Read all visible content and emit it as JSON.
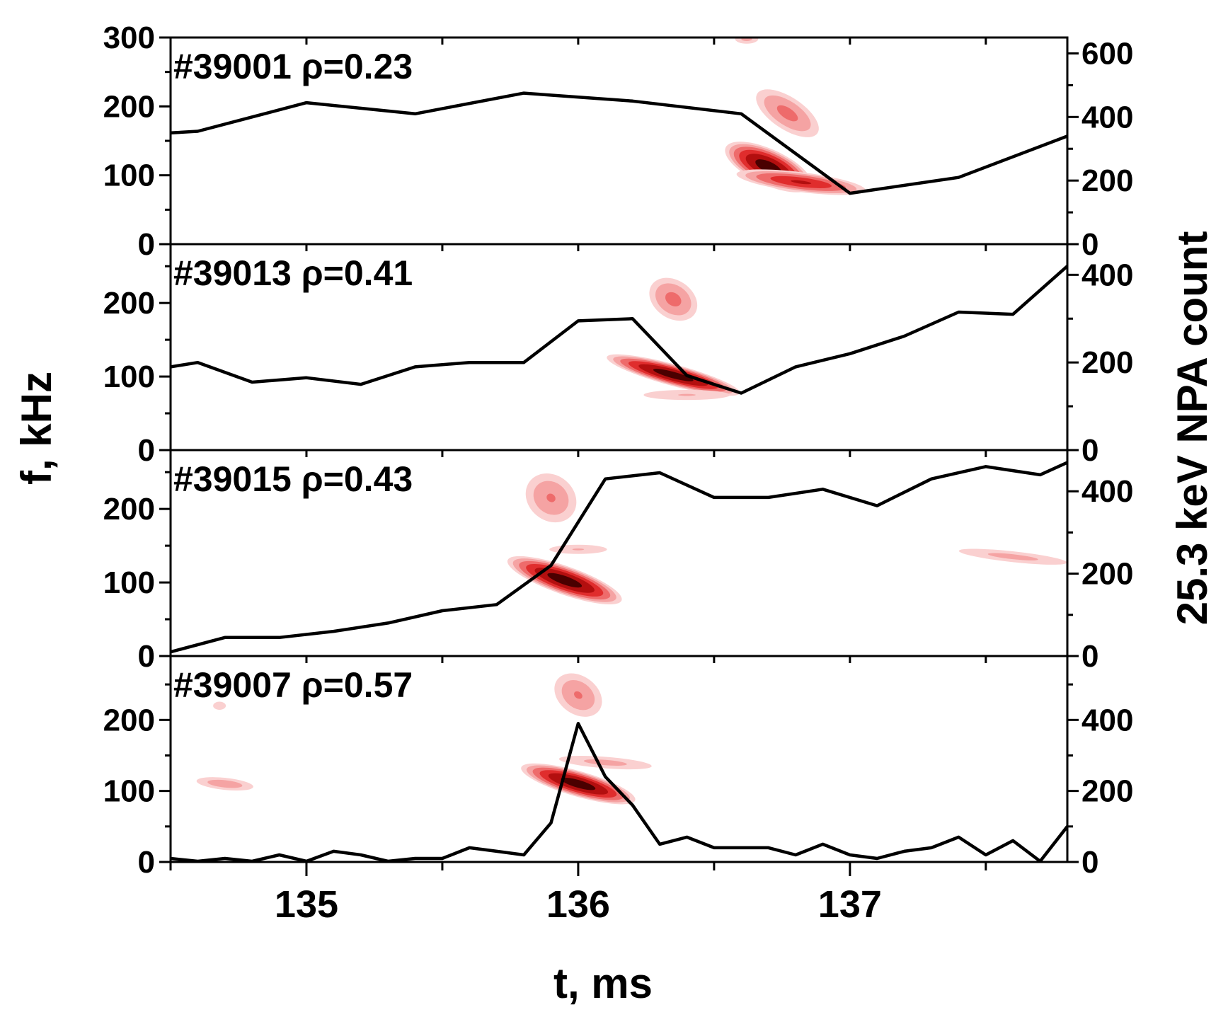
{
  "chart_data": {
    "type": "line",
    "xlabel": "t, ms",
    "ylabel": "f, kHz",
    "y2label": "25.3 keV NPA count",
    "xlim": [
      134.5,
      137.8
    ],
    "xticks": [
      135,
      136,
      137
    ],
    "xtick_labels": [
      "135",
      "136",
      "137"
    ],
    "grid": false,
    "panels": [
      {
        "label": "#39001 ρ=0.23",
        "ylim": [
          0,
          300
        ],
        "y2lim": [
          0,
          650
        ],
        "yticks": [
          0,
          100,
          200,
          300
        ],
        "ytick_labels": [
          "0",
          "100",
          "200",
          "300"
        ],
        "y2ticks": [
          0,
          200,
          400,
          600
        ],
        "y2tick_labels": [
          "0",
          "200",
          "400",
          "600"
        ],
        "series": [
          {
            "axis": "right",
            "x": [
              134.5,
              134.6,
              134.8,
              135.0,
              135.4,
              135.8,
              136.2,
              136.6,
              137.0,
              137.4,
              137.8
            ],
            "y": [
              350,
              355,
              400,
              445,
              410,
              475,
              450,
              410,
              160,
              210,
              340
            ]
          }
        ],
        "blobs": [
          {
            "t": 136.7,
            "f": 112,
            "sigma_t": 0.09,
            "sigma_f": 26,
            "slope": -180,
            "strength": 1.0
          },
          {
            "t": 136.82,
            "f": 90,
            "sigma_t": 0.14,
            "sigma_f": 12,
            "slope": -50,
            "strength": 0.75
          },
          {
            "t": 136.77,
            "f": 190,
            "sigma_t": 0.07,
            "sigma_f": 26,
            "slope": -260,
            "strength": 0.5
          },
          {
            "t": 136.62,
            "f": 298,
            "sigma_t": 0.03,
            "sigma_f": 4,
            "slope": 0,
            "strength": 0.35
          }
        ]
      },
      {
        "label": "#39013 ρ=0.41",
        "ylim": [
          0,
          280
        ],
        "y2lim": [
          0,
          470
        ],
        "yticks": [
          0,
          100,
          200
        ],
        "ytick_labels": [
          "0",
          "100",
          "200"
        ],
        "y2ticks": [
          0,
          200,
          400
        ],
        "y2tick_labels": [
          "0",
          "200",
          "400"
        ],
        "series": [
          {
            "axis": "right",
            "x": [
              134.5,
              134.6,
              134.8,
              135.0,
              135.2,
              135.4,
              135.6,
              135.8,
              136.0,
              136.2,
              136.4,
              136.6,
              136.8,
              137.0,
              137.2,
              137.4,
              137.6,
              137.8
            ],
            "y": [
              190,
              200,
              155,
              165,
              150,
              190,
              200,
              200,
              295,
              300,
              170,
              130,
              190,
              220,
              260,
              315,
              310,
              420
            ]
          }
        ],
        "blobs": [
          {
            "t": 136.35,
            "f": 102,
            "sigma_t": 0.14,
            "sigma_f": 12,
            "slope": -100,
            "strength": 1.0
          },
          {
            "t": 136.35,
            "f": 205,
            "sigma_t": 0.05,
            "sigma_f": 30,
            "slope": -250,
            "strength": 0.5
          },
          {
            "t": 136.4,
            "f": 75,
            "sigma_t": 0.12,
            "sigma_f": 5,
            "slope": 0,
            "strength": 0.3
          }
        ]
      },
      {
        "label": "#39015 ρ=0.43",
        "ylim": [
          0,
          280
        ],
        "y2lim": [
          0,
          500
        ],
        "yticks": [
          0,
          100,
          200
        ],
        "ytick_labels": [
          "0",
          "100",
          "200"
        ],
        "y2ticks": [
          0,
          200,
          400
        ],
        "y2tick_labels": [
          "0",
          "200",
          "400"
        ],
        "series": [
          {
            "axis": "right",
            "x": [
              134.5,
              134.7,
              134.9,
              135.1,
              135.3,
              135.5,
              135.7,
              135.9,
              136.1,
              136.3,
              136.5,
              136.7,
              136.9,
              137.1,
              137.3,
              137.5,
              137.7,
              137.8
            ],
            "y": [
              10,
              45,
              45,
              60,
              80,
              110,
              125,
              220,
              430,
              445,
              385,
              385,
              405,
              365,
              430,
              460,
              440,
              470
            ]
          }
        ],
        "blobs": [
          {
            "t": 135.95,
            "f": 103,
            "sigma_t": 0.12,
            "sigma_f": 18,
            "slope": -130,
            "strength": 1.0
          },
          {
            "t": 135.9,
            "f": 215,
            "sigma_t": 0.05,
            "sigma_f": 38,
            "slope": -300,
            "strength": 0.45
          },
          {
            "t": 136.0,
            "f": 145,
            "sigma_t": 0.08,
            "sigma_f": 4,
            "slope": 0,
            "strength": 0.3
          },
          {
            "t": 137.6,
            "f": 135,
            "sigma_t": 0.14,
            "sigma_f": 5,
            "slope": -40,
            "strength": 0.35
          }
        ]
      },
      {
        "label": "#39007 ρ=0.57",
        "ylim": [
          0,
          290
        ],
        "y2lim": [
          0,
          580
        ],
        "yticks": [
          0,
          100,
          200
        ],
        "ytick_labels": [
          "0",
          "100",
          "200"
        ],
        "y2ticks": [
          0,
          200,
          400
        ],
        "y2tick_labels": [
          "0",
          "200",
          "400"
        ],
        "series": [
          {
            "axis": "right",
            "x": [
              134.5,
              134.6,
              134.7,
              134.8,
              134.9,
              135.0,
              135.1,
              135.2,
              135.3,
              135.4,
              135.5,
              135.6,
              135.7,
              135.8,
              135.9,
              136.0,
              136.1,
              136.2,
              136.3,
              136.4,
              136.5,
              136.6,
              136.7,
              136.8,
              136.9,
              137.0,
              137.1,
              137.2,
              137.3,
              137.4,
              137.5,
              137.6,
              137.7,
              137.8
            ],
            "y": [
              10,
              2,
              10,
              2,
              20,
              2,
              30,
              20,
              2,
              10,
              10,
              40,
              30,
              20,
              110,
              390,
              240,
              160,
              50,
              70,
              40,
              40,
              40,
              20,
              50,
              20,
              10,
              30,
              40,
              70,
              20,
              60,
              2,
              100
            ]
          }
        ],
        "blobs": [
          {
            "t": 136.0,
            "f": 110,
            "sigma_t": 0.12,
            "sigma_f": 16,
            "slope": -110,
            "strength": 1.0
          },
          {
            "t": 136.0,
            "f": 235,
            "sigma_t": 0.05,
            "sigma_f": 32,
            "slope": -280,
            "strength": 0.45
          },
          {
            "t": 136.1,
            "f": 140,
            "sigma_t": 0.12,
            "sigma_f": 6,
            "slope": -30,
            "strength": 0.35
          },
          {
            "t": 134.7,
            "f": 110,
            "sigma_t": 0.07,
            "sigma_f": 6,
            "slope": -40,
            "strength": 0.4
          },
          {
            "t": 134.68,
            "f": 220,
            "sigma_t": 0.02,
            "sigma_f": 4,
            "slope": 0,
            "strength": 0.25
          }
        ]
      }
    ]
  },
  "colors": {
    "contour_levels": [
      "#fad0d0",
      "#f5a3a3",
      "#ee6b6b",
      "#e02d2d",
      "#b30f0f",
      "#4a0000"
    ],
    "line": "#000000"
  }
}
